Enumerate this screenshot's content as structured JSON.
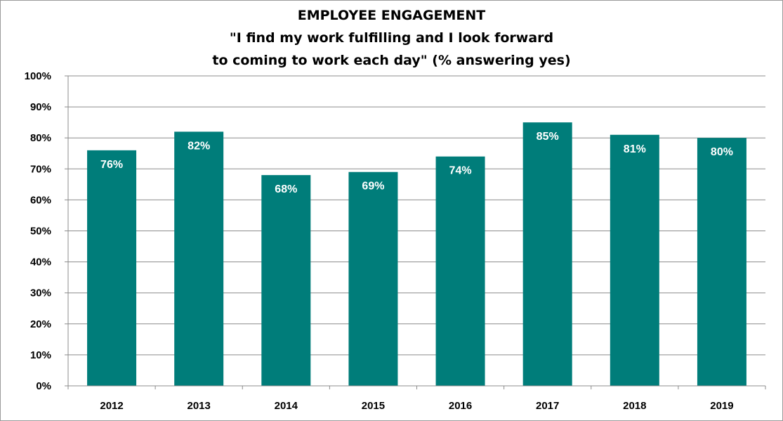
{
  "chart_data": {
    "type": "bar",
    "title_lines": [
      "EMPLOYEE ENGAGEMENT",
      "\"I find my work fulfilling and I look forward",
      "to coming to work each day\" (% answering yes)"
    ],
    "categories": [
      "2012",
      "2013",
      "2014",
      "2015",
      "2016",
      "2017",
      "2018",
      "2019"
    ],
    "values": [
      76,
      82,
      68,
      69,
      74,
      85,
      81,
      80
    ],
    "data_labels": [
      "76%",
      "82%",
      "68%",
      "69%",
      "74%",
      "85%",
      "81%",
      "80%"
    ],
    "y_ticks": [
      "0%",
      "10%",
      "20%",
      "30%",
      "40%",
      "50%",
      "60%",
      "70%",
      "80%",
      "90%",
      "100%"
    ],
    "ylim": [
      0,
      100
    ],
    "y_step": 10,
    "grid": true,
    "legend": "none",
    "bar_color": "#007D7A",
    "label_color": "#ffffff"
  }
}
